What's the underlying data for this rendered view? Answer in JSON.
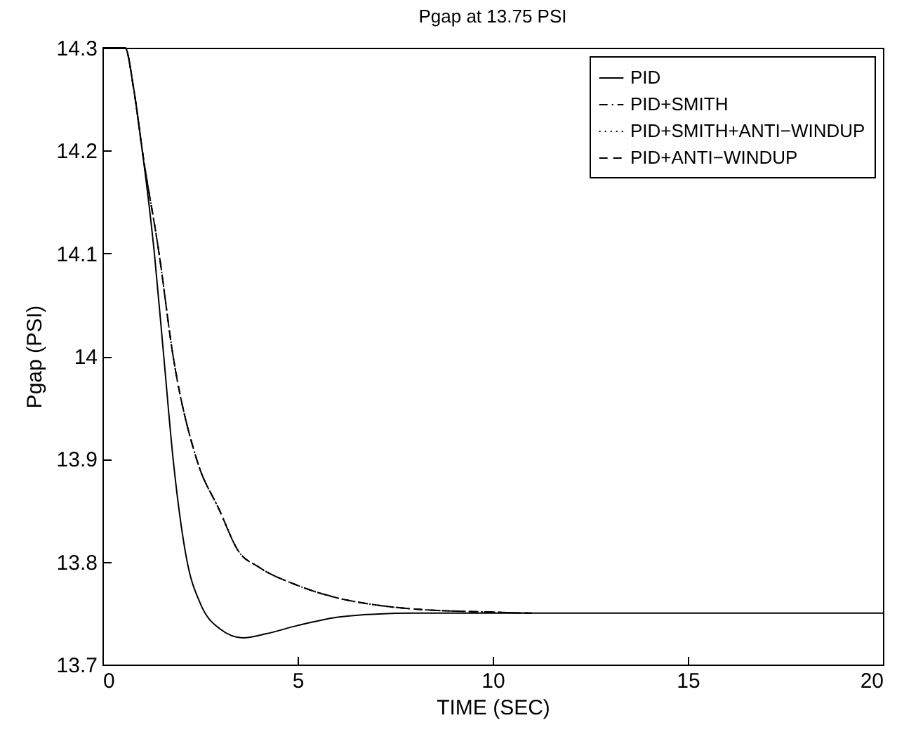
{
  "chart_data": {
    "type": "line",
    "title": "Pgap at 13.75 PSI",
    "xlabel": "TIME (SEC)",
    "ylabel": "Pgap (PSI)",
    "xlim": [
      0,
      20
    ],
    "xticks": [
      0,
      5,
      10,
      15,
      20
    ],
    "ylim": [
      13.7,
      14.3
    ],
    "yticks": [
      13.7,
      13.8,
      13.9,
      14,
      14.1,
      14.2,
      14.3
    ],
    "legend": "top right",
    "series": [
      {
        "name": "PID",
        "color": "#000000",
        "line_style": "solid",
        "x": [
          0,
          0.58,
          0.8,
          1.02,
          1.33,
          1.57,
          1.81,
          2.17,
          2.5,
          3.0,
          3.6,
          4.2,
          5,
          6,
          7,
          8,
          20
        ],
        "values": [
          14.3,
          14.3,
          14.26,
          14.2,
          14.1,
          14.0,
          13.9,
          13.8,
          13.76,
          13.735,
          13.726,
          13.73,
          13.738,
          13.746,
          13.749,
          13.75,
          13.75
        ]
      },
      {
        "name": "PID+SMITH",
        "color": "#000000",
        "line_style": "dashdot",
        "x": [
          0,
          0.58,
          0.8,
          1.02,
          1.45,
          1.81,
          2.41,
          3.0,
          3.49,
          4.0,
          5,
          6,
          7,
          8,
          10,
          11
        ],
        "values": [
          14.3,
          14.3,
          14.26,
          14.2,
          14.1,
          14.0,
          13.9,
          13.85,
          13.81,
          13.795,
          13.777,
          13.765,
          13.758,
          13.754,
          13.751,
          13.75
        ]
      },
      {
        "name": "PID+SMITH+ANTI−WINDUP",
        "color": "#000000",
        "line_style": "dotted",
        "x": [
          0,
          0.58,
          0.8,
          1.02,
          1.45,
          1.81,
          2.41,
          3.0,
          3.49,
          4.0,
          5,
          6,
          7,
          8,
          10,
          11
        ],
        "values": [
          14.3,
          14.3,
          14.26,
          14.2,
          14.1,
          14.0,
          13.9,
          13.85,
          13.81,
          13.795,
          13.777,
          13.765,
          13.758,
          13.754,
          13.751,
          13.75
        ]
      },
      {
        "name": "PID+ANTI−WINDUP",
        "color": "#000000",
        "line_style": "dashed",
        "x": [
          0,
          0.58,
          0.8,
          1.02,
          1.45,
          1.81,
          2.41,
          3.0,
          3.49,
          4.0,
          5,
          6,
          7,
          8,
          10,
          11
        ],
        "values": [
          14.3,
          14.3,
          14.26,
          14.2,
          14.1,
          14.0,
          13.9,
          13.85,
          13.81,
          13.795,
          13.777,
          13.765,
          13.758,
          13.754,
          13.751,
          13.75
        ]
      }
    ]
  }
}
